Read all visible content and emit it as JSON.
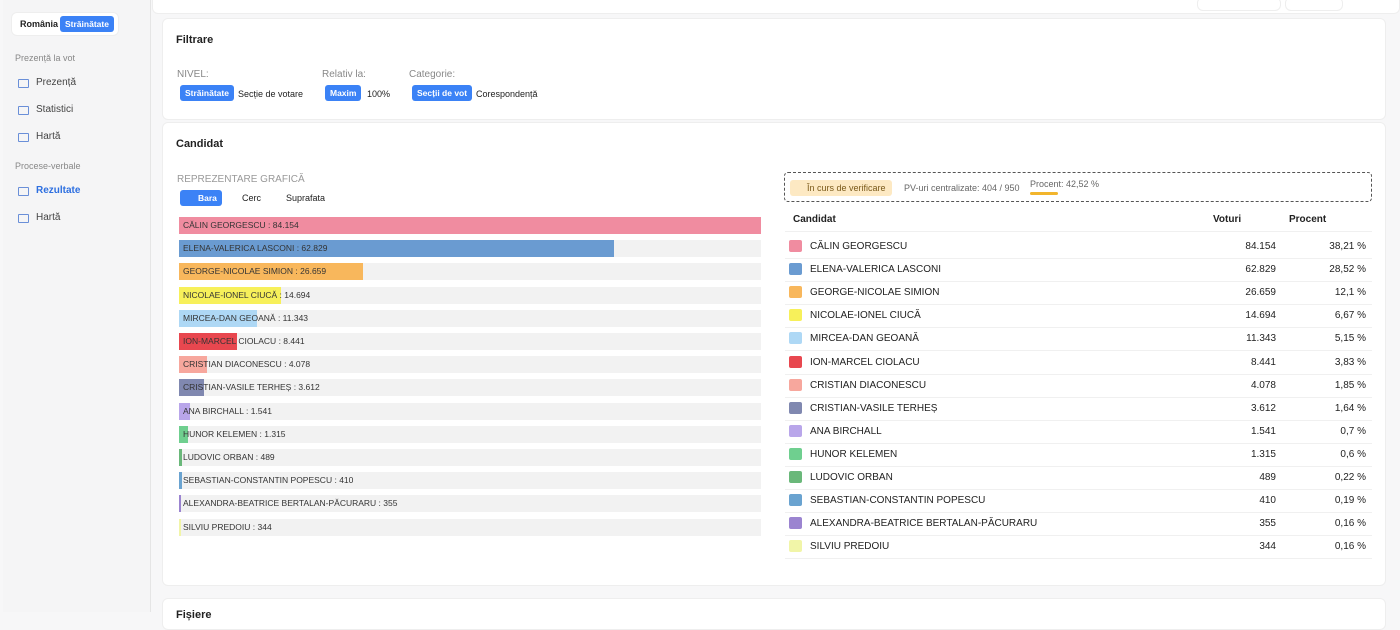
{
  "sidebar": {
    "tabs": [
      "România",
      "Străinătate"
    ],
    "sections": [
      {
        "title": "Prezență la vot",
        "items": [
          "Prezență",
          "Statistici",
          "Hartă"
        ]
      },
      {
        "title": "Procese-verbale",
        "items": [
          "Rezultate",
          "Hartă"
        ]
      }
    ]
  },
  "filters": {
    "title": "Filtrare",
    "groups": [
      {
        "label": "NIVEL:",
        "options": [
          "Străinătate",
          "Secție de votare"
        ]
      },
      {
        "label": "Relativ la:",
        "options": [
          "Maxim",
          "100%"
        ]
      },
      {
        "label": "Categorie:",
        "options": [
          "Secții de vot",
          "Corespondență"
        ]
      }
    ]
  },
  "candidate": {
    "title": "Candidat",
    "chart_label": "REPREZENTARE GRAFICĂ",
    "chart_types": [
      "Bara",
      "Cerc",
      "Suprafata"
    ],
    "bar_label_separator": " : ",
    "status": "În curs de verificare",
    "pv": "PV-uri centralizate: 404 / 950",
    "percent": "Procent: 42,52 %",
    "columns": [
      "Candidat",
      "Voturi",
      "Procent"
    ],
    "rows": [
      {
        "name": "CĂLIN GEORGESCU",
        "color": "#f08ca0",
        "votes": 84154,
        "votes_label": "84.154",
        "percent": "38,21 %"
      },
      {
        "name": "ELENA-VALERICA LASCONI",
        "color": "#6a9bd1",
        "votes": 62829,
        "votes_label": "62.829",
        "percent": "28,52 %"
      },
      {
        "name": "GEORGE-NICOLAE SIMION",
        "color": "#f8b75c",
        "votes": 26659,
        "votes_label": "26.659",
        "percent": "12,1 %"
      },
      {
        "name": "NICOLAE-IONEL CIUCĂ",
        "color": "#f7f05a",
        "votes": 14694,
        "votes_label": "14.694",
        "percent": "6,67 %"
      },
      {
        "name": "MIRCEA-DAN GEOANĂ",
        "color": "#aed8f5",
        "votes": 11343,
        "votes_label": "11.343",
        "percent": "5,15 %"
      },
      {
        "name": "ION-MARCEL CIOLACU",
        "color": "#e8474f",
        "votes": 8441,
        "votes_label": "8.441",
        "percent": "3,83 %"
      },
      {
        "name": "CRISTIAN DIACONESCU",
        "color": "#f7a79d",
        "votes": 4078,
        "votes_label": "4.078",
        "percent": "1,85 %"
      },
      {
        "name": "CRISTIAN-VASILE TERHEȘ",
        "color": "#8088b0",
        "votes": 3612,
        "votes_label": "3.612",
        "percent": "1,64 %"
      },
      {
        "name": "ANA BIRCHALL",
        "color": "#b9a6ea",
        "votes": 1541,
        "votes_label": "1.541",
        "percent": "0,7 %"
      },
      {
        "name": "HUNOR KELEMEN",
        "color": "#6fcf8f",
        "votes": 1315,
        "votes_label": "1.315",
        "percent": "0,6 %"
      },
      {
        "name": "LUDOVIC ORBAN",
        "color": "#6ab87a",
        "votes": 489,
        "votes_label": "489",
        "percent": "0,22 %"
      },
      {
        "name": "SEBASTIAN-CONSTANTIN POPESCU",
        "color": "#6aa3d0",
        "votes": 410,
        "votes_label": "410",
        "percent": "0,19 %"
      },
      {
        "name": "ALEXANDRA-BEATRICE BERTALAN-PĂCURARU",
        "color": "#9b84d0",
        "votes": 355,
        "votes_label": "355",
        "percent": "0,16 %"
      },
      {
        "name": "SILVIU PREDOIU",
        "color": "#f1f5a8",
        "votes": 344,
        "votes_label": "344",
        "percent": "0,16 %"
      }
    ]
  },
  "footer_title": "Fișiere"
}
